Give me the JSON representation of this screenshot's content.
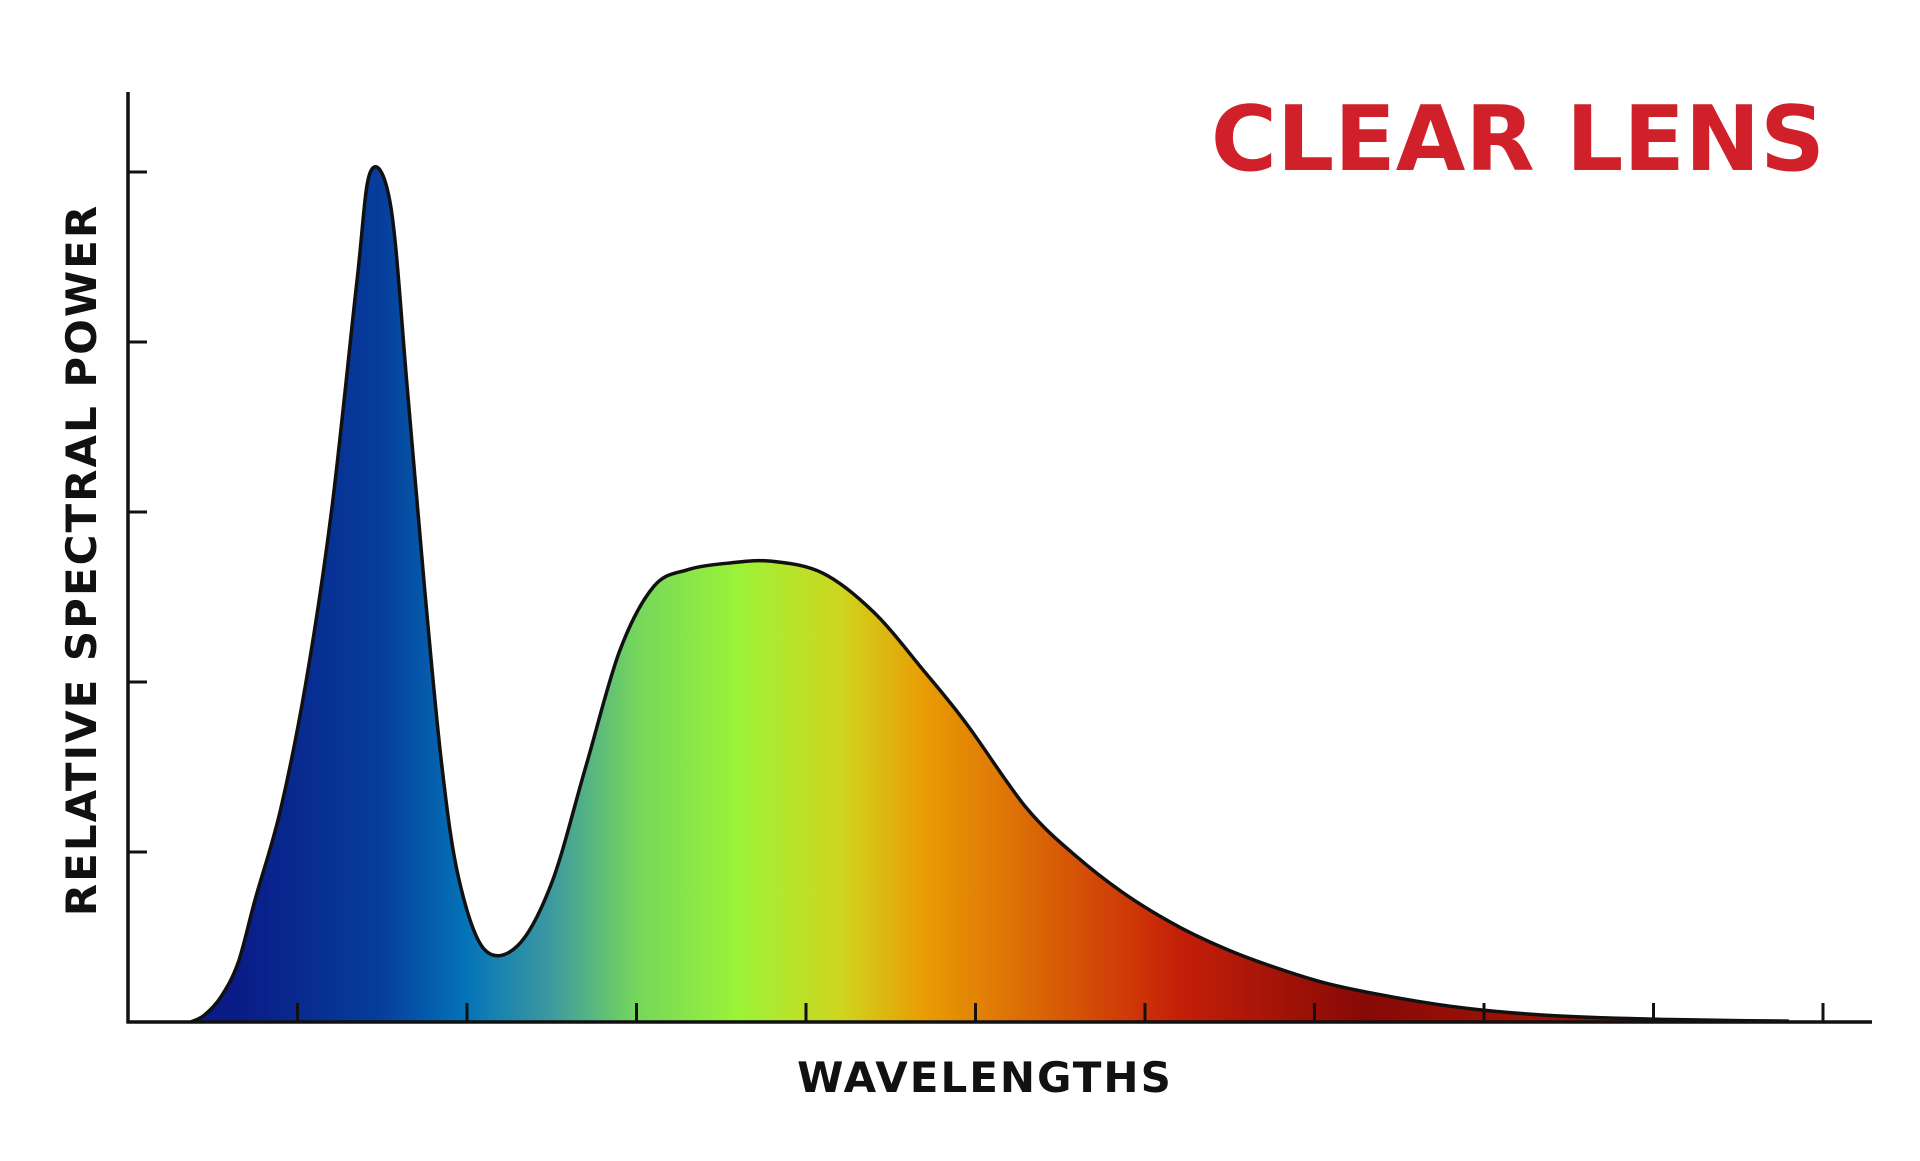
{
  "chart_data": {
    "type": "area",
    "title": "CLEAR LENS",
    "xlabel": "WAVELENGTHS",
    "ylabel": "RELATIVE SPECTRAL POWER",
    "x_ticks": [
      1,
      2,
      3,
      4,
      5,
      6,
      7,
      8,
      9,
      10
    ],
    "y_ticks": [
      1,
      2,
      3,
      4,
      5
    ],
    "xlim": [
      0,
      10.3
    ],
    "ylim": [
      0,
      5.5
    ],
    "x_tick_labels_shown": false,
    "y_tick_labels_shown": false,
    "series": [
      {
        "x": [
          0.37,
          0.45,
          0.55,
          0.65,
          0.75,
          0.9,
          1.05,
          1.2,
          1.35,
          1.43,
          1.55,
          1.65,
          1.75,
          1.85,
          1.95,
          2.1,
          2.3,
          2.5,
          2.7,
          2.9,
          3.1,
          3.3,
          3.55,
          3.8,
          4.1,
          4.4,
          4.7,
          4.95,
          5.3,
          5.6,
          5.9,
          6.2,
          6.5,
          6.8,
          7.1,
          7.5,
          7.9,
          8.3,
          8.7,
          9.1,
          9.5,
          9.8
        ],
        "values": [
          0.0,
          0.04,
          0.15,
          0.35,
          0.72,
          1.25,
          2.0,
          3.0,
          4.35,
          5.0,
          4.8,
          3.7,
          2.55,
          1.52,
          0.85,
          0.43,
          0.45,
          0.82,
          1.5,
          2.18,
          2.56,
          2.66,
          2.7,
          2.71,
          2.64,
          2.41,
          2.06,
          1.75,
          1.26,
          0.97,
          0.74,
          0.56,
          0.42,
          0.31,
          0.22,
          0.14,
          0.08,
          0.044,
          0.025,
          0.015,
          0.008,
          0.005
        ]
      }
    ],
    "gradient_stops": [
      {
        "x": 0.6,
        "color": "#0a1a86"
      },
      {
        "x": 1.5,
        "color": "#063e9c"
      },
      {
        "x": 2.0,
        "color": "#0474b8"
      },
      {
        "x": 2.5,
        "color": "#3d9aa0"
      },
      {
        "x": 3.0,
        "color": "#75d65c"
      },
      {
        "x": 3.6,
        "color": "#9cf338"
      },
      {
        "x": 4.2,
        "color": "#cfd61f"
      },
      {
        "x": 4.7,
        "color": "#e99c04"
      },
      {
        "x": 6.0,
        "color": "#cc3108"
      },
      {
        "x": 6.2,
        "color": "#c41f08"
      },
      {
        "x": 7.3,
        "color": "#870907"
      },
      {
        "x": 8.2,
        "color": "#9e1305"
      }
    ],
    "colors": {
      "title": "#d0202a",
      "axis": "#111111",
      "outline": "#111111",
      "background": "#ffffff"
    }
  }
}
